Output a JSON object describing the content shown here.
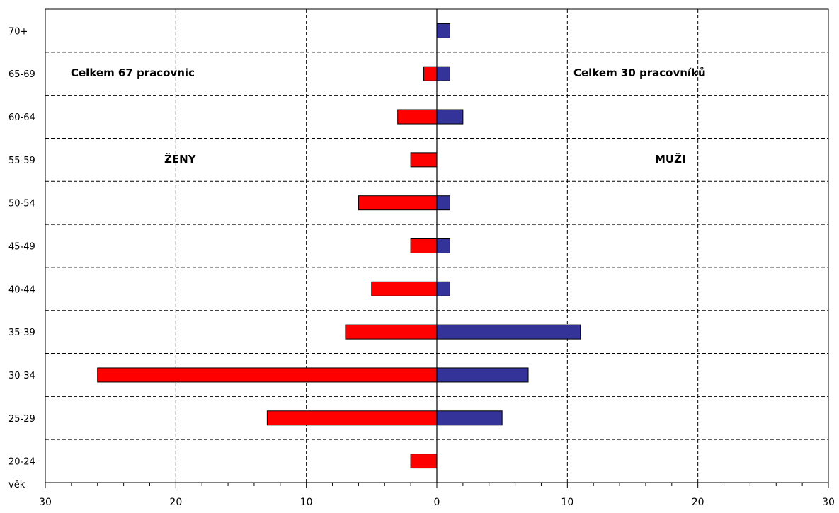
{
  "chart_data": {
    "type": "bar",
    "orientation": "horizontal",
    "layout": "population-pyramid",
    "categories": [
      "20-24",
      "25-29",
      "30-34",
      "35-39",
      "40-44",
      "45-49",
      "50-54",
      "55-59",
      "60-64",
      "65-69",
      "70+"
    ],
    "category_axis_label": "věk",
    "series": [
      {
        "name": "ŽENY",
        "side": "left",
        "color": "#ff0000",
        "values": [
          2,
          13,
          26,
          7,
          5,
          2,
          6,
          2,
          3,
          1,
          0
        ]
      },
      {
        "name": "MUŽI",
        "side": "right",
        "color": "#333399",
        "values": [
          0,
          5,
          7,
          11,
          1,
          1,
          1,
          0,
          2,
          1,
          1
        ]
      }
    ],
    "x_range": [
      -30,
      30
    ],
    "x_ticks": [
      {
        "value": -30,
        "label": "30",
        "color": "#ff0000"
      },
      {
        "value": -20,
        "label": "20",
        "color": "#ff0000"
      },
      {
        "value": -10,
        "label": "10",
        "color": "#ff0000"
      },
      {
        "value": 0,
        "label": "0",
        "color": "#000000"
      },
      {
        "value": 10,
        "label": "10",
        "color": "#000000"
      },
      {
        "value": 20,
        "label": "20",
        "color": "#000000"
      },
      {
        "value": 30,
        "label": "30",
        "color": "#000000"
      }
    ],
    "annotations": {
      "women_total": "Celkem 67 pracovnic",
      "men_total": "Celkem 30 pracovníků",
      "women_label": "ŽENY",
      "men_label": "MUŽI"
    },
    "grid": true
  }
}
